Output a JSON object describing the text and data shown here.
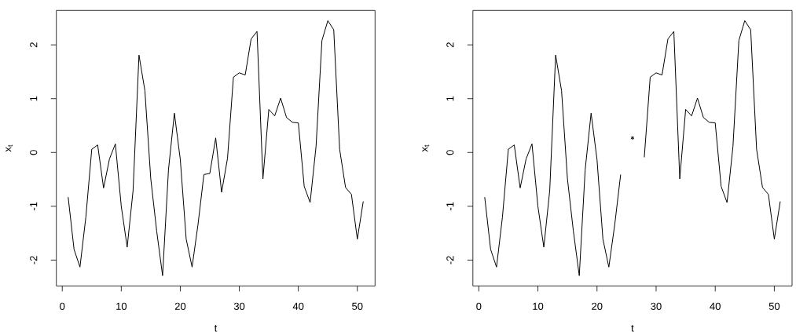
{
  "chart_data": [
    {
      "type": "line",
      "xlabel": "t",
      "ylabel": "x$_{t}$",
      "color": "#000000",
      "x": [
        1,
        2,
        3,
        4,
        5,
        6,
        7,
        8,
        9,
        10,
        11,
        12,
        13,
        14,
        15,
        16,
        17,
        18,
        19,
        20,
        21,
        22,
        23,
        24,
        25,
        26,
        27,
        28,
        29,
        30,
        31,
        32,
        33,
        34,
        35,
        36,
        37,
        38,
        39,
        40,
        41,
        42,
        43,
        44,
        45,
        46,
        47,
        48,
        49,
        50,
        51
      ],
      "values": [
        -0.83,
        -1.8,
        -2.13,
        -1.2,
        0.06,
        0.14,
        -0.66,
        -0.12,
        0.16,
        -1.0,
        -1.76,
        -0.71,
        1.81,
        1.15,
        -0.49,
        -1.46,
        -2.29,
        -0.32,
        0.73,
        -0.13,
        -1.61,
        -2.13,
        -1.34,
        -0.41,
        -0.39,
        0.27,
        -0.74,
        -0.11,
        1.4,
        1.48,
        1.44,
        2.11,
        2.25,
        -0.49,
        0.8,
        0.68,
        1.01,
        0.65,
        0.56,
        0.55,
        -0.63,
        -0.93,
        0.11,
        2.08,
        2.45,
        2.28,
        0.06,
        -0.65,
        -0.78,
        -1.61,
        -0.91
      ],
      "xlim": [
        -1,
        53
      ],
      "ylim": [
        -2.48,
        2.64
      ],
      "xticks": [
        0,
        10,
        20,
        30,
        40,
        50
      ],
      "yticks": [
        -2,
        -1,
        0,
        1,
        2
      ]
    },
    {
      "type": "line",
      "xlabel": "t",
      "ylabel": "x$_{t}$",
      "x": [
        1,
        2,
        3,
        4,
        5,
        6,
        7,
        8,
        9,
        10,
        11,
        12,
        13,
        14,
        15,
        16,
        17,
        18,
        19,
        20,
        21,
        22,
        23,
        24,
        25,
        26,
        27,
        28,
        29,
        30,
        31,
        32,
        33,
        34,
        35,
        36,
        37,
        38,
        39,
        40,
        41,
        42,
        43,
        44,
        45,
        46,
        47,
        48,
        49,
        50,
        51
      ],
      "series": [
        {
          "type": "line",
          "color": "#000000",
          "values": [
            -0.83,
            -1.8,
            -2.13,
            -1.2,
            0.06,
            0.14,
            -0.66,
            -0.12,
            0.16,
            -1.0,
            -1.76,
            -0.71,
            1.81,
            1.15,
            -0.49,
            -1.46,
            -2.29,
            -0.32,
            0.73,
            -0.13,
            -1.61,
            -2.13,
            -1.34,
            -0.41,
            null,
            null,
            null,
            -0.09,
            1.4,
            1.48,
            1.44,
            2.11,
            2.25,
            -0.49,
            0.8,
            0.68,
            1.01,
            0.65,
            0.56,
            0.55,
            -0.63,
            -0.93,
            0.11,
            2.08,
            2.45,
            2.28,
            0.06,
            -0.65,
            -0.78,
            -1.61,
            -0.91
          ]
        },
        {
          "type": "scatter",
          "color": "#000000",
          "marker": "cross",
          "x": [
            26
          ],
          "values": [
            0.27
          ]
        }
      ],
      "xlim": [
        -1,
        53
      ],
      "ylim": [
        -2.48,
        2.64
      ],
      "xticks": [
        0,
        10,
        20,
        30,
        40,
        50
      ],
      "yticks": [
        -2,
        -1,
        0,
        1,
        2
      ]
    }
  ]
}
